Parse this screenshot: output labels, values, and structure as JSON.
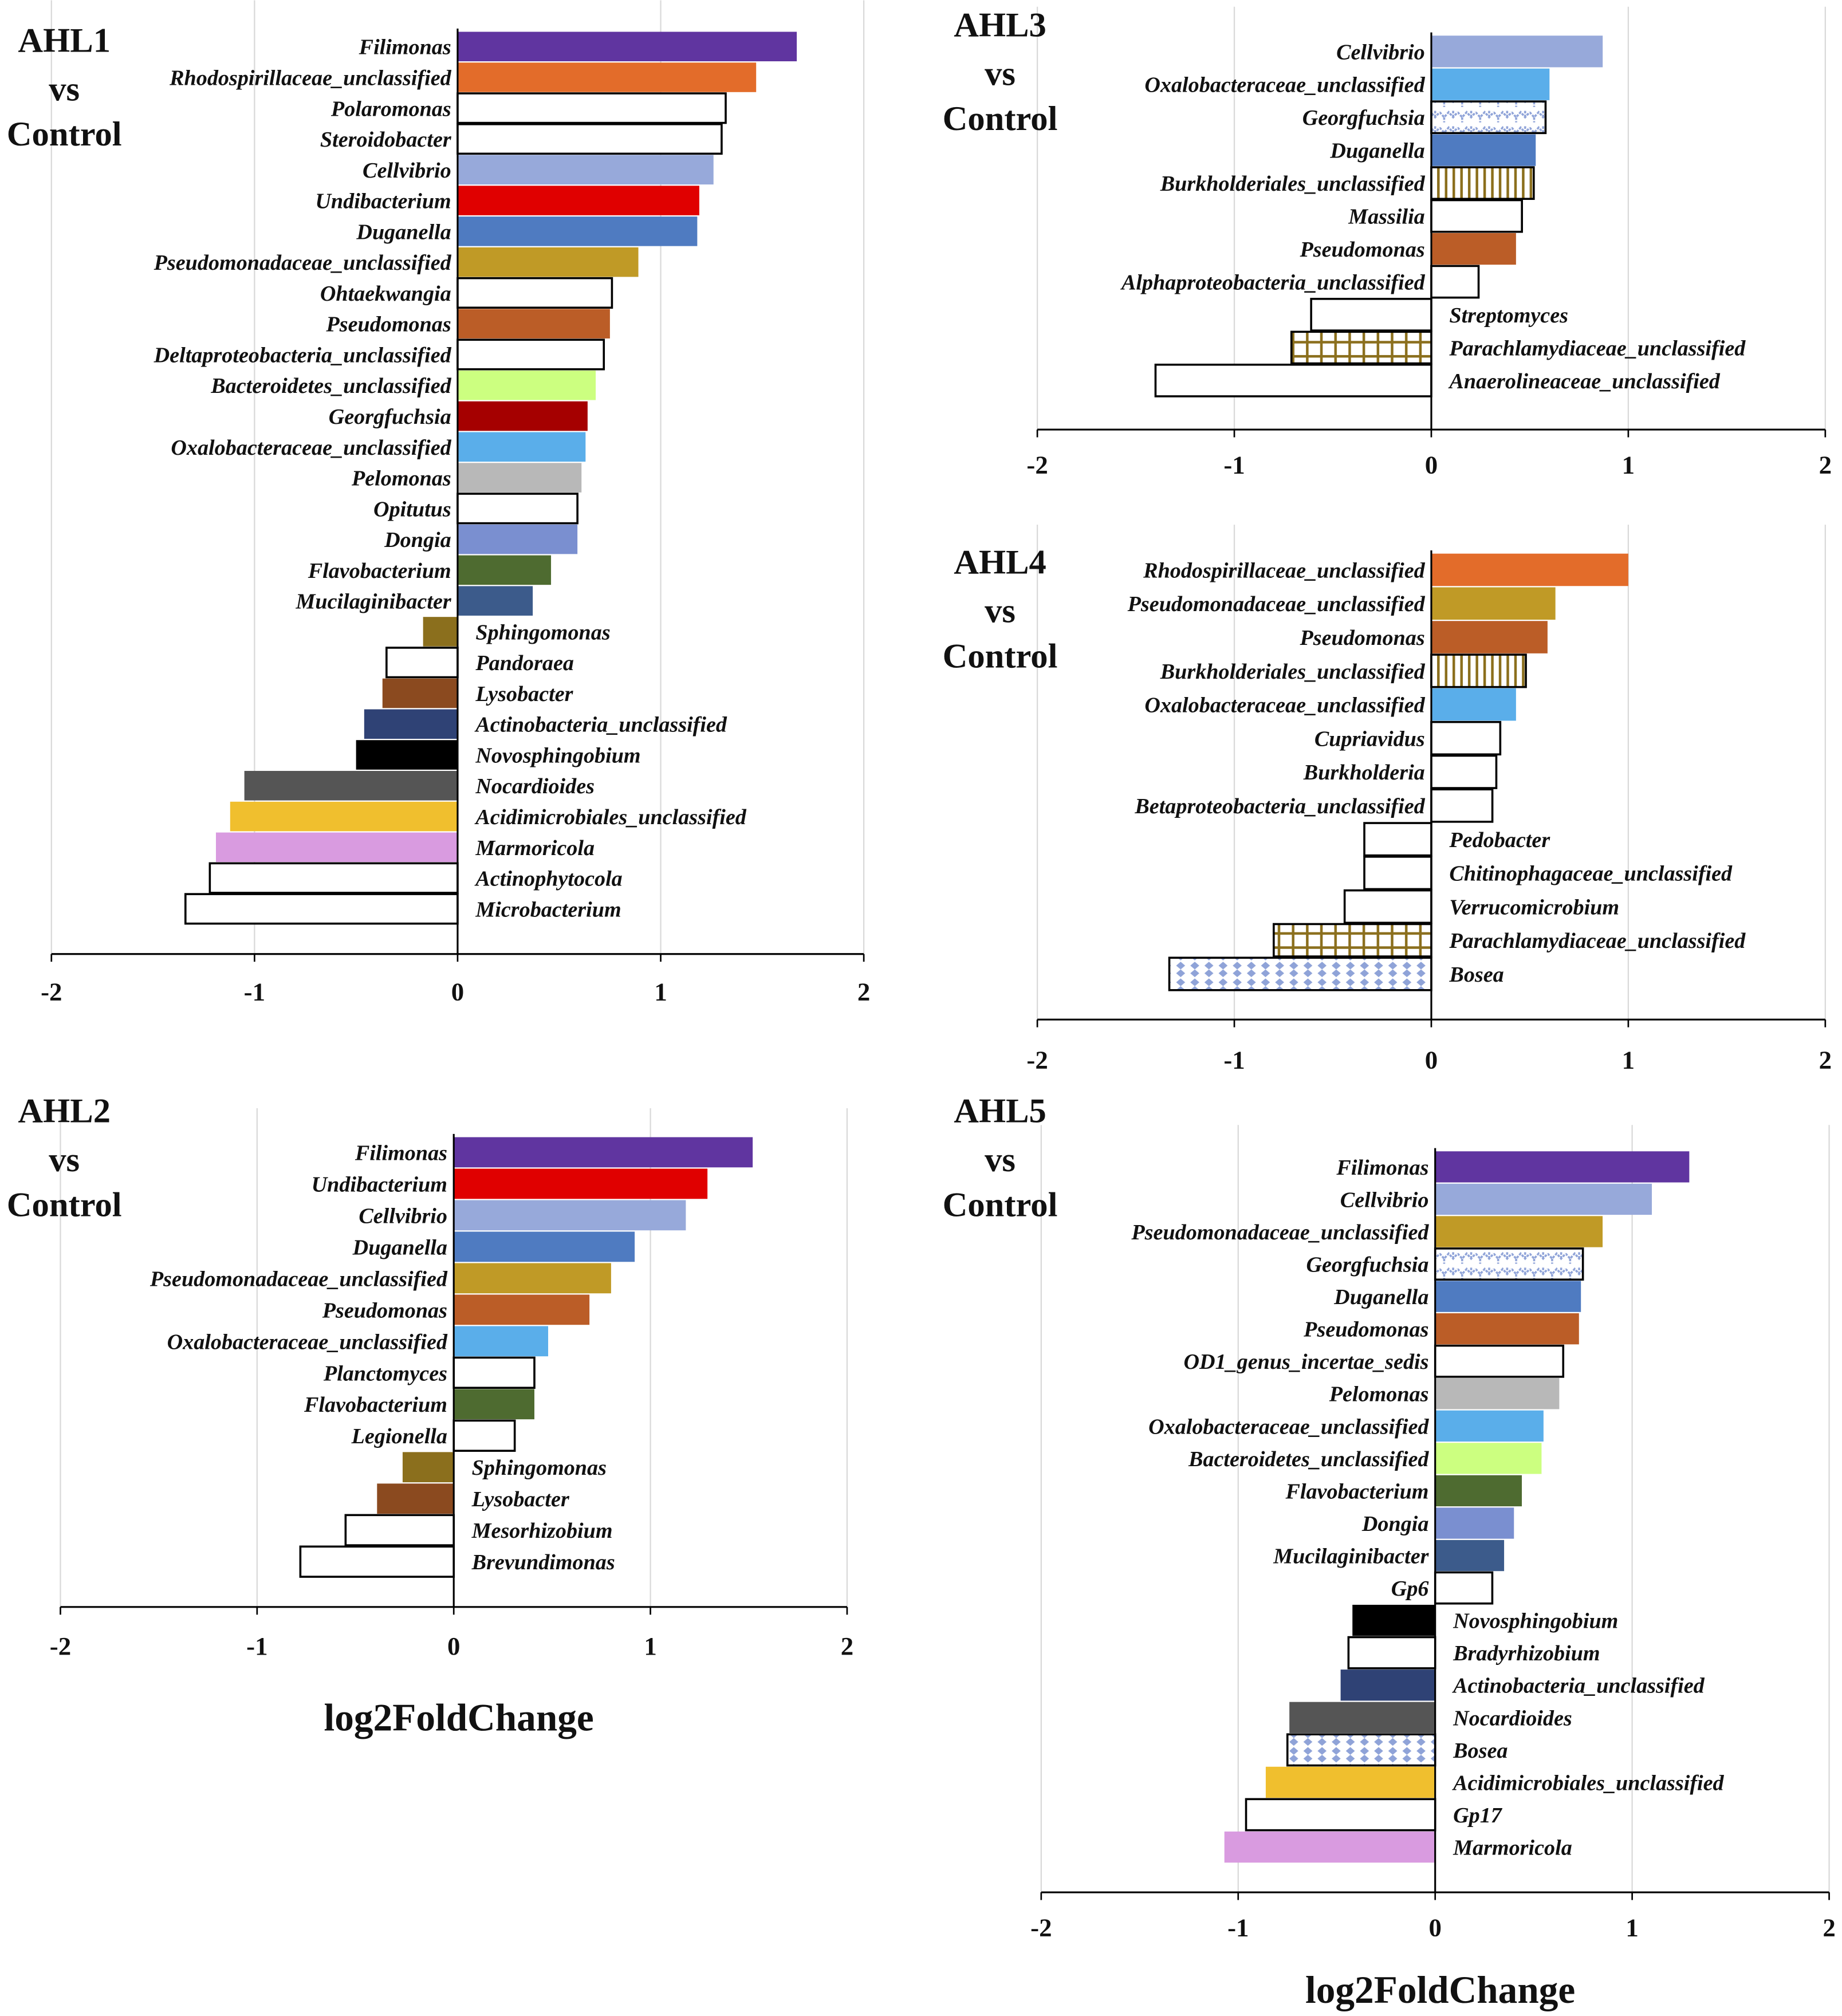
{
  "colors": {
    "Filimonas": "#6035a0",
    "Rhodospirillaceae_unclassified": "#e36c2a",
    "Cellvibrio": "#97a9da",
    "Undibacterium": "#e00000",
    "Duganella": "#4f7bc1",
    "Pseudomonadaceae_unclassified": "#c09a26",
    "Pseudomonas": "#bb5d27",
    "Bacteroidetes_unclassified": "#ccff80",
    "Georgfuchsia": "#a50000",
    "Oxalobacteraceae_unclassified": "#5aaeea",
    "Pelomonas": "#b8b8b8",
    "Dongia": "#7a8fd0",
    "Flavobacterium": "#4e6b30",
    "Mucilaginibacter": "#3c5b8b",
    "Sphingomonas": "#8b6f1d",
    "Lysobacter": "#8b4a1f",
    "Actinobacteria_unclassified": "#2f4275",
    "Novosphingobium": "#000000",
    "Nocardioides": "#555555",
    "Acidimicrobiales_unclassified": "#f0bf2e",
    "Marmoricola": "#d99be0",
    "pattern_blue": "#8fa3d8",
    "pattern_olive": "#8b6f1d"
  },
  "chart_data": [
    {
      "type": "bar",
      "orientation": "horizontal",
      "title": [
        "AHL1",
        "vs",
        "Control"
      ],
      "xlabel": "",
      "xlim": [
        -2,
        2
      ],
      "xticks": [
        "-2",
        "-1",
        "0",
        "1",
        "2"
      ],
      "grid": true,
      "categories": [
        "Filimonas",
        "Rhodospirillaceae_unclassified",
        "Polaromonas",
        "Steroidobacter",
        "Cellvibrio",
        "Undibacterium",
        "Duganella",
        "Pseudomonadaceae_unclassified",
        "Ohtaekwangia",
        "Pseudomonas",
        "Deltaproteobacteria_unclassified",
        "Bacteroidetes_unclassified",
        "Georgfuchsia",
        "Oxalobacteraceae_unclassified",
        "Pelomonas",
        "Opitutus",
        "Dongia",
        "Flavobacterium",
        "Mucilaginibacter",
        "Sphingomonas",
        "Pandoraea",
        "Lysobacter",
        "Actinobacteria_unclassified",
        "Novosphingobium",
        "Nocardioides",
        "Acidimicrobiales_unclassified",
        "Marmoricola",
        "Actinophytocola",
        "Microbacterium"
      ],
      "values": [
        1.67,
        1.47,
        1.32,
        1.3,
        1.26,
        1.19,
        1.18,
        0.89,
        0.76,
        0.75,
        0.72,
        0.68,
        0.64,
        0.63,
        0.61,
        0.59,
        0.59,
        0.46,
        0.37,
        -0.17,
        -0.35,
        -0.37,
        -0.46,
        -0.5,
        -1.05,
        -1.12,
        -1.19,
        -1.22,
        -1.34
      ],
      "fills": [
        "Filimonas",
        "Rhodospirillaceae_unclassified",
        "white",
        "white",
        "Cellvibrio",
        "Undibacterium",
        "Duganella",
        "Pseudomonadaceae_unclassified",
        "white",
        "Pseudomonas",
        "white",
        "Bacteroidetes_unclassified",
        "Georgfuchsia",
        "Oxalobacteraceae_unclassified",
        "Pelomonas",
        "white",
        "Dongia",
        "Flavobacterium",
        "Mucilaginibacter",
        "Sphingomonas",
        "white",
        "Lysobacter",
        "Actinobacteria_unclassified",
        "Novosphingobium",
        "Nocardioides",
        "Acidimicrobiales_unclassified",
        "Marmoricola",
        "white",
        "white"
      ]
    },
    {
      "type": "bar",
      "orientation": "horizontal",
      "title": [
        "AHL3",
        "vs",
        "Control"
      ],
      "xlabel": "",
      "xlim": [
        -2,
        2
      ],
      "xticks": [
        "-2",
        "-1",
        "0",
        "1",
        "2"
      ],
      "grid": true,
      "categories": [
        "Cellvibrio",
        "Oxalobacteraceae_unclassified",
        "Georgfuchsia",
        "Duganella",
        "Burkholderiales_unclassified",
        "Massilia",
        "Pseudomonas",
        "Alphaproteobacteria_unclassified",
        "Streptomyces",
        "Parachlamydiaceae_unclassified",
        "Anaerolineaceae_unclassified"
      ],
      "values": [
        0.87,
        0.6,
        0.58,
        0.53,
        0.52,
        0.46,
        0.43,
        0.24,
        -0.61,
        -0.71,
        -1.4
      ],
      "fills": [
        "Cellvibrio",
        "Oxalobacteraceae_unclassified",
        "wave",
        "Duganella",
        "vstripe",
        "white",
        "Pseudomonas",
        "white",
        "white",
        "grid",
        "white"
      ]
    },
    {
      "type": "bar",
      "orientation": "horizontal",
      "title": [
        "AHL4",
        "vs",
        "Control"
      ],
      "xlabel": "",
      "xlim": [
        -2,
        2
      ],
      "xticks": [
        "-2",
        "-1",
        "0",
        "1",
        "2"
      ],
      "grid": true,
      "categories": [
        "Rhodospirillaceae_unclassified",
        "Pseudomonadaceae_unclassified",
        "Pseudomonas",
        "Burkholderiales_unclassified",
        "Oxalobacteraceae_unclassified",
        "Cupriavidus",
        "Burkholderia",
        "Betaproteobacteria_unclassified",
        "Pedobacter",
        "Chitinophagaceae_unclassified",
        "Verrucomicrobium",
        "Parachlamydiaceae_unclassified",
        "Bosea"
      ],
      "values": [
        1.0,
        0.63,
        0.59,
        0.48,
        0.43,
        0.35,
        0.33,
        0.31,
        -0.34,
        -0.34,
        -0.44,
        -0.8,
        -1.33
      ],
      "fills": [
        "Rhodospirillaceae_unclassified",
        "Pseudomonadaceae_unclassified",
        "Pseudomonas",
        "vstripe",
        "Oxalobacteraceae_unclassified",
        "white",
        "white",
        "white",
        "white",
        "white",
        "white",
        "grid",
        "diamond"
      ]
    },
    {
      "type": "bar",
      "orientation": "horizontal",
      "title": [
        "AHL2",
        "vs",
        "Control"
      ],
      "xlabel": "log2FoldChange",
      "xlim": [
        -2,
        2
      ],
      "xticks": [
        "-2",
        "-1",
        "0",
        "1",
        "2"
      ],
      "grid": true,
      "categories": [
        "Filimonas",
        "Undibacterium",
        "Cellvibrio",
        "Duganella",
        "Pseudomonadaceae_unclassified",
        "Pseudomonas",
        "Oxalobacteraceae_unclassified",
        "Planctomyces",
        "Flavobacterium",
        "Legionella",
        "Sphingomonas",
        "Lysobacter",
        "Mesorhizobium",
        "Brevundimonas"
      ],
      "values": [
        1.52,
        1.29,
        1.18,
        0.92,
        0.8,
        0.69,
        0.48,
        0.41,
        0.41,
        0.31,
        -0.26,
        -0.39,
        -0.55,
        -0.78
      ],
      "fills": [
        "Filimonas",
        "Undibacterium",
        "Cellvibrio",
        "Duganella",
        "Pseudomonadaceae_unclassified",
        "Pseudomonas",
        "Oxalobacteraceae_unclassified",
        "white",
        "Flavobacterium",
        "white",
        "Sphingomonas",
        "Lysobacter",
        "white",
        "white"
      ]
    },
    {
      "type": "bar",
      "orientation": "horizontal",
      "title": [
        "AHL5",
        "vs",
        "Control"
      ],
      "xlabel": "log2FoldChange",
      "xlim": [
        -2,
        2
      ],
      "xticks": [
        "-2",
        "-1",
        "0",
        "1",
        "2"
      ],
      "grid": true,
      "categories": [
        "Filimonas",
        "Cellvibrio",
        "Pseudomonadaceae_unclassified",
        "Georgfuchsia",
        "Duganella",
        "Pseudomonas",
        "OD1_genus_incertae_sedis",
        "Pelomonas",
        "Oxalobacteraceae_unclassified",
        "Bacteroidetes_unclassified",
        "Flavobacterium",
        "Dongia",
        "Mucilaginibacter",
        "Gp6",
        "Novosphingobium",
        "Bradyrhizobium",
        "Actinobacteria_unclassified",
        "Nocardioides",
        "Bosea",
        "Acidimicrobiales_unclassified",
        "Gp17",
        "Marmoricola"
      ],
      "values": [
        1.29,
        1.1,
        0.85,
        0.75,
        0.74,
        0.73,
        0.65,
        0.63,
        0.55,
        0.54,
        0.44,
        0.4,
        0.35,
        0.29,
        -0.42,
        -0.44,
        -0.48,
        -0.74,
        -0.75,
        -0.86,
        -0.96,
        -1.07
      ],
      "fills": [
        "Filimonas",
        "Cellvibrio",
        "Pseudomonadaceae_unclassified",
        "wave",
        "Duganella",
        "Pseudomonas",
        "white",
        "Pelomonas",
        "Oxalobacteraceae_unclassified",
        "Bacteroidetes_unclassified",
        "Flavobacterium",
        "Dongia",
        "Mucilaginibacter",
        "white",
        "Novosphingobium",
        "white",
        "Actinobacteria_unclassified",
        "Nocardioides",
        "diamond",
        "Acidimicrobiales_unclassified",
        "white",
        "Marmoricola"
      ]
    }
  ]
}
